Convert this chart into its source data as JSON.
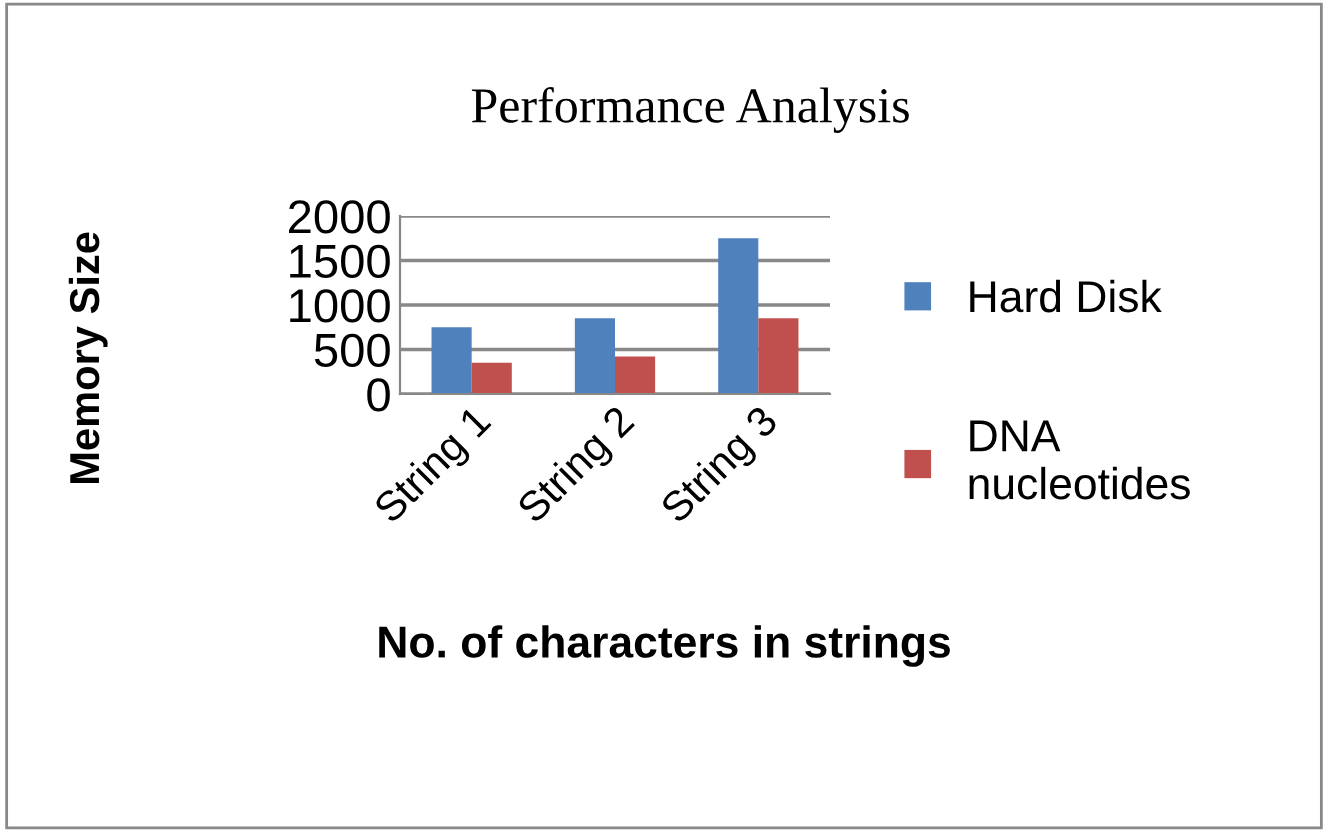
{
  "chart_data": {
    "type": "bar",
    "title": "Performance Analysis",
    "xlabel": "No. of characters in strings",
    "ylabel": "Memory Size",
    "categories": [
      "String 1",
      "String 2",
      "String 3"
    ],
    "series": [
      {
        "name": "Hard Disk",
        "color": "#4f81bd",
        "values": [
          750,
          850,
          1750
        ]
      },
      {
        "name": "DNA\nnucleotides",
        "color": "#c0504d",
        "values": [
          350,
          420,
          850
        ]
      }
    ],
    "ylim": [
      0,
      2000
    ],
    "yticks": [
      0,
      500,
      1000,
      1500,
      2000
    ],
    "grid": "y",
    "legend": "right"
  }
}
